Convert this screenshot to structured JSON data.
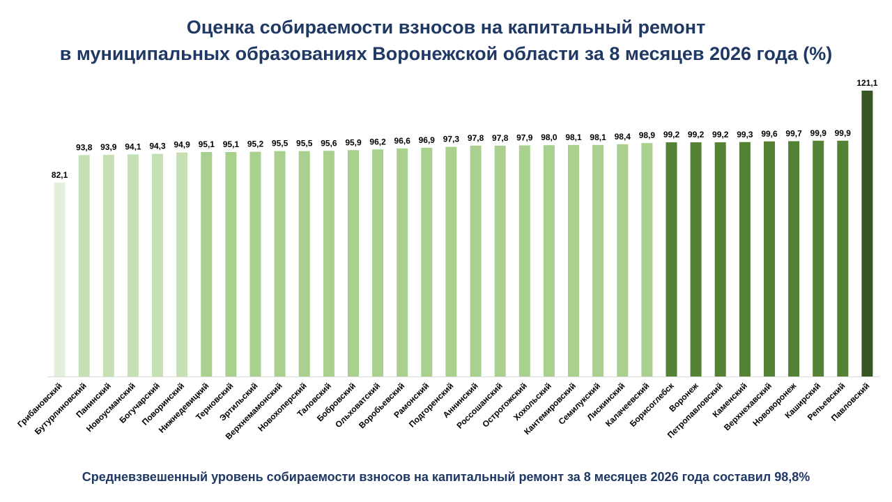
{
  "title": {
    "line1": "Оценка собираемости взносов на капитальный ремонт",
    "line2": "в муниципальных образованиях Воронежской области за 8 месяцев 2026 года (%)"
  },
  "footer": "Средневзвешенный уровень собираемости взносов на капитальный ремонт за 8 месяцев 2026 года составил 98,8%",
  "chart_data": {
    "type": "bar",
    "categories": [
      "Грибановский",
      "Бутурлиновский",
      "Панинский",
      "Новоусманский",
      "Богучарский",
      "Поворинский",
      "Нижнедевицкий",
      "Терновский",
      "Эртильский",
      "Верхнемамонский",
      "Новохоперский",
      "Таловский",
      "Бобровский",
      "Ольховатский",
      "Воробьевский",
      "Рамонский",
      "Подгоренский",
      "Аннинский",
      "Россошанский",
      "Острогожский",
      "Хохольский",
      "Кантемировский",
      "Семилукский",
      "Лискинский",
      "Калачеевский",
      "Борисоглебск",
      "Воронеж",
      "Петропавловский",
      "Каменский",
      "Верхнехавский",
      "Нововоронеж",
      "Каширский",
      "Репьевский",
      "Павловский"
    ],
    "values": [
      82.1,
      93.8,
      93.9,
      94.1,
      94.3,
      94.9,
      95.1,
      95.1,
      95.2,
      95.5,
      95.5,
      95.6,
      95.9,
      96.2,
      96.6,
      96.9,
      97.3,
      97.8,
      97.8,
      97.9,
      98.0,
      98.1,
      98.1,
      98.4,
      98.9,
      99.2,
      99.2,
      99.2,
      99.3,
      99.6,
      99.7,
      99.9,
      99.9,
      121.1
    ],
    "value_labels": [
      "82,1",
      "93,8",
      "93,9",
      "94,1",
      "94,3",
      "94,9",
      "95,1",
      "95,1",
      "95,2",
      "95,5",
      "95,5",
      "95,6",
      "95,9",
      "96,2",
      "96,6",
      "96,9",
      "97,3",
      "97,8",
      "97,8",
      "97,9",
      "98,0",
      "98,1",
      "98,1",
      "98,4",
      "98,9",
      "99,2",
      "99,2",
      "99,2",
      "99,3",
      "99,6",
      "99,7",
      "99,9",
      "99,9",
      "121,1"
    ],
    "bar_colors": [
      "#e2efda",
      "#c6e0b4",
      "#c6e0b4",
      "#c6e0b4",
      "#c6e0b4",
      "#c6e0b4",
      "#a9d08e",
      "#a9d08e",
      "#a9d08e",
      "#a9d08e",
      "#a9d08e",
      "#a9d08e",
      "#a9d08e",
      "#a9d08e",
      "#a9d08e",
      "#a9d08e",
      "#a9d08e",
      "#a9d08e",
      "#a9d08e",
      "#a9d08e",
      "#a9d08e",
      "#a9d08e",
      "#a9d08e",
      "#a9d08e",
      "#a9d08e",
      "#548235",
      "#548235",
      "#548235",
      "#548235",
      "#548235",
      "#548235",
      "#548235",
      "#548235",
      "#375623"
    ],
    "axis_color": "#d9d9d9",
    "grid": false,
    "legend": "none",
    "xlabel": "",
    "ylabel": ""
  }
}
